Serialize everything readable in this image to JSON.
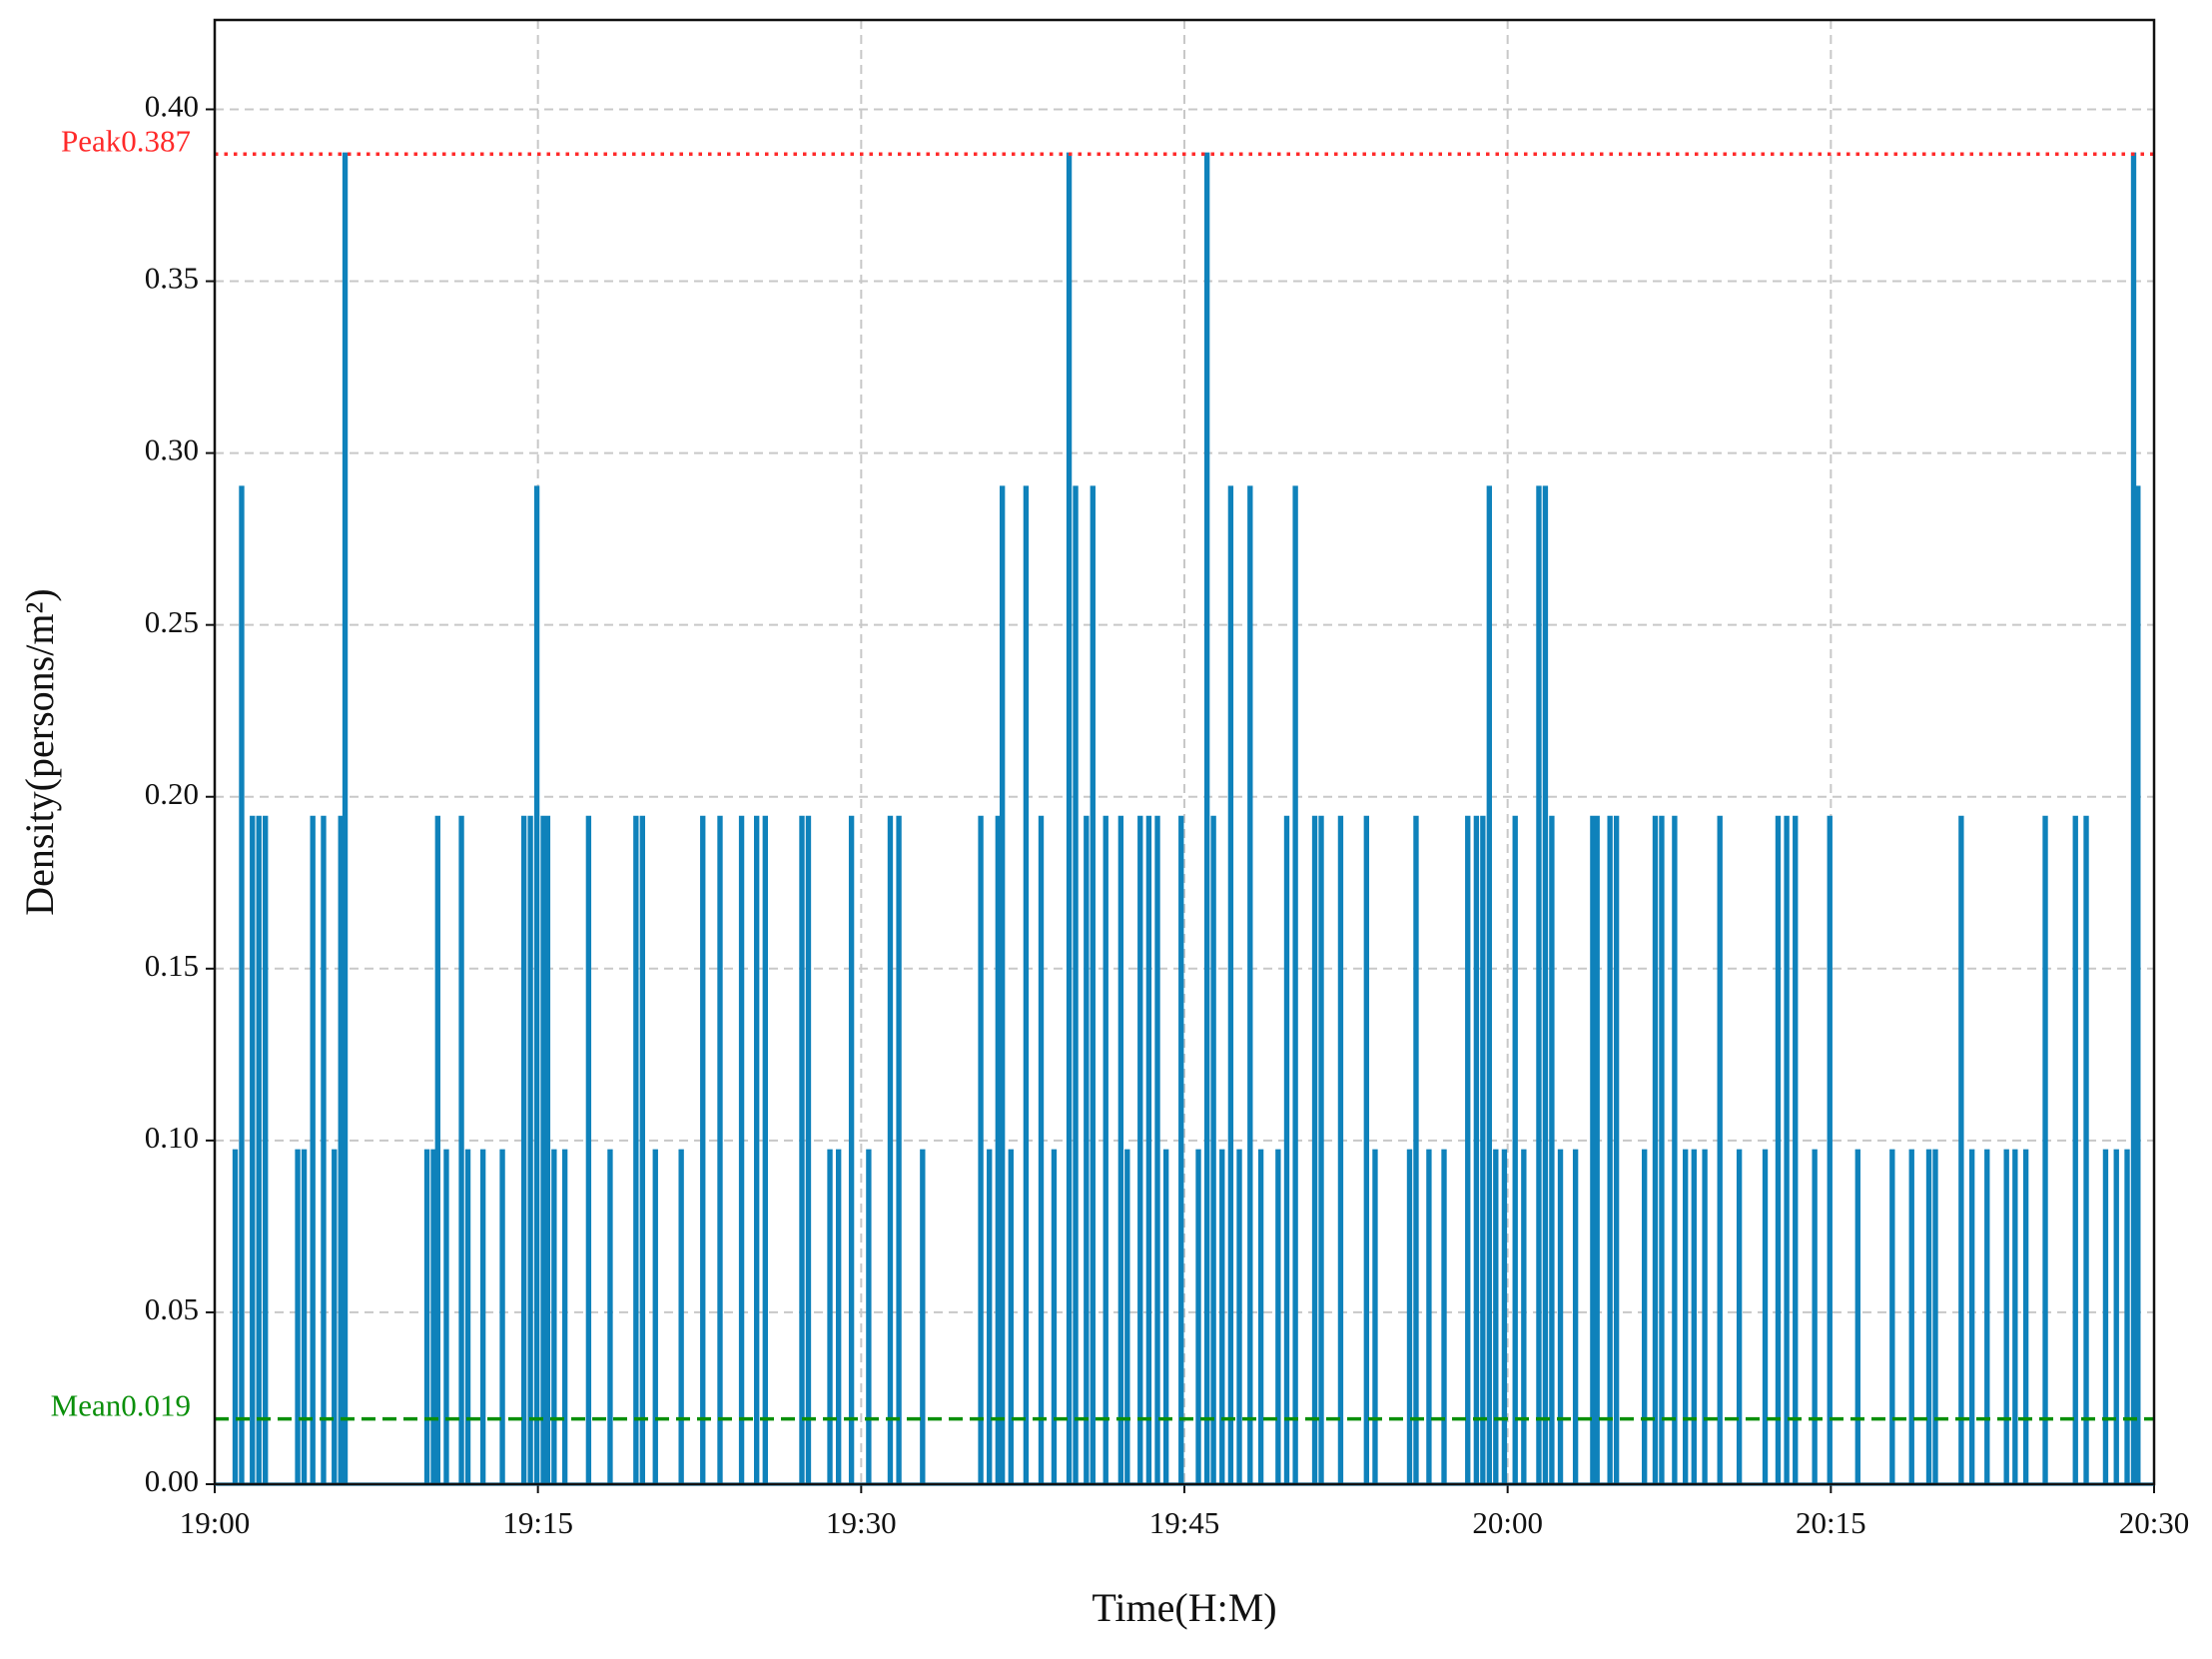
{
  "chart_data": {
    "type": "line",
    "x_label": "Time(H:M)",
    "y_label": "Density(persons/m²)",
    "drawstyle": "steps-post",
    "grid": true,
    "xlim": [
      0,
      90
    ],
    "xticks": [
      {
        "value": 0,
        "label": "19:00"
      },
      {
        "value": 15,
        "label": "19:15"
      },
      {
        "value": 30,
        "label": "19:30"
      },
      {
        "value": 45,
        "label": "19:45"
      },
      {
        "value": 60,
        "label": "20:00"
      },
      {
        "value": 75,
        "label": "20:15"
      },
      {
        "value": 90,
        "label": "20:30"
      }
    ],
    "ylim": [
      0,
      0.426
    ],
    "yticks": [
      {
        "value": 0,
        "label": "0.00"
      },
      {
        "value": 0.05,
        "label": "0.05"
      },
      {
        "value": 0.1,
        "label": "0.10"
      },
      {
        "value": 0.15,
        "label": "0.15"
      },
      {
        "value": 0.2,
        "label": "0.20"
      },
      {
        "value": 0.25,
        "label": "0.25"
      },
      {
        "value": 0.3,
        "label": "0.30"
      },
      {
        "value": 0.35,
        "label": "0.35"
      },
      {
        "value": 0.4,
        "label": "0.40"
      }
    ],
    "reference_lines": [
      {
        "label": "Peak0.387",
        "value": 0.387,
        "color": "#ff2a2a",
        "style": "dotted"
      },
      {
        "label": "Mean0.019",
        "value": 0.019,
        "color": "#0a8f0a",
        "style": "dashed"
      }
    ],
    "series": [
      {
        "color": "#0f82bb",
        "x": [
          0,
          0.9,
          1.0,
          1.2,
          1.3,
          1.7,
          1.8,
          2.0,
          2.1,
          2.3,
          2.4,
          3.8,
          3.9,
          4.1,
          4.2,
          4.5,
          4.6,
          5.0,
          5.1,
          5.5,
          5.6,
          5.8,
          5.9,
          6.0,
          6.1,
          9.8,
          9.9,
          10.1,
          10.2,
          10.3,
          10.4,
          10.7,
          10.8,
          11.4,
          11.5,
          11.7,
          11.8,
          12.4,
          12.5,
          13.3,
          13.4,
          14.3,
          14.4,
          14.6,
          14.7,
          14.9,
          15.0,
          15.2,
          15.3,
          15.4,
          15.5,
          15.7,
          15.8,
          16.2,
          16.3,
          17.3,
          17.4,
          18.3,
          18.4,
          19.5,
          19.6,
          19.8,
          19.9,
          20.4,
          20.5,
          21.6,
          21.7,
          22.6,
          22.7,
          23.4,
          23.5,
          24.4,
          24.5,
          25.1,
          25.2,
          25.5,
          25.6,
          27.2,
          27.3,
          27.5,
          27.6,
          28.5,
          28.6,
          28.9,
          29.0,
          29.5,
          29.6,
          30.3,
          30.4,
          31.3,
          31.4,
          31.7,
          31.8,
          32.8,
          32.9,
          35.5,
          35.6,
          35.9,
          36.0,
          36.3,
          36.4,
          36.5,
          36.6,
          36.9,
          37.0,
          37.6,
          37.7,
          38.3,
          38.4,
          38.9,
          39.0,
          39.6,
          39.7,
          39.9,
          40.0,
          40.4,
          40.5,
          40.7,
          40.8,
          41.3,
          41.4,
          42.0,
          42.1,
          42.3,
          42.4,
          42.9,
          43.0,
          43.3,
          43.4,
          43.7,
          43.8,
          44.1,
          44.2,
          44.8,
          44.9,
          45.6,
          45.7,
          46.0,
          46.1,
          46.3,
          46.4,
          46.7,
          46.8,
          47.1,
          47.2,
          47.5,
          47.6,
          48.0,
          48.1,
          48.5,
          48.6,
          49.3,
          49.4,
          49.7,
          49.8,
          50.1,
          50.2,
          51.0,
          51.1,
          51.3,
          51.4,
          52.2,
          52.3,
          53.4,
          53.5,
          53.8,
          53.9,
          55.4,
          55.5,
          55.7,
          55.8,
          56.3,
          56.4,
          57.0,
          57.1,
          58.1,
          58.2,
          58.5,
          58.6,
          58.8,
          58.9,
          59.1,
          59.2,
          59.4,
          59.5,
          59.8,
          59.9,
          60.3,
          60.4,
          60.7,
          60.8,
          61.4,
          61.5,
          61.7,
          61.8,
          62.0,
          62.1,
          62.4,
          62.5,
          63.1,
          63.2,
          63.9,
          64.0,
          64.1,
          64.2,
          64.7,
          64.8,
          65.0,
          65.1,
          66.3,
          66.4,
          66.8,
          66.9,
          67.1,
          67.2,
          67.7,
          67.8,
          68.2,
          68.3,
          68.6,
          68.7,
          69.1,
          69.2,
          69.8,
          69.9,
          70.7,
          70.8,
          71.9,
          72.0,
          72.5,
          72.6,
          72.9,
          73.0,
          73.3,
          73.4,
          74.2,
          74.3,
          74.9,
          75.0,
          76.2,
          76.3,
          77.8,
          77.9,
          78.7,
          78.8,
          79.5,
          79.6,
          79.8,
          79.9,
          81.0,
          81.1,
          81.5,
          81.6,
          82.2,
          82.3,
          83.1,
          83.2,
          83.5,
          83.6,
          84.0,
          84.1,
          84.9,
          85.0,
          86.3,
          86.4,
          86.8,
          86.9,
          87.7,
          87.8,
          88.2,
          88.3,
          88.7,
          88.8,
          89.0,
          89.1,
          89.2,
          89.3,
          90
        ],
        "values": [
          0,
          0.097,
          0,
          0.29,
          0,
          0.194,
          0,
          0.194,
          0,
          0.194,
          0,
          0.097,
          0,
          0.097,
          0,
          0.194,
          0,
          0.194,
          0,
          0.097,
          0,
          0.194,
          0,
          0.387,
          0,
          0.097,
          0,
          0.097,
          0,
          0.194,
          0,
          0.097,
          0,
          0.194,
          0,
          0.097,
          0,
          0.097,
          0,
          0.097,
          0,
          0.194,
          0,
          0.194,
          0,
          0.29,
          0,
          0.194,
          0,
          0.194,
          0,
          0.097,
          0,
          0.097,
          0,
          0.194,
          0,
          0.097,
          0,
          0.194,
          0,
          0.194,
          0,
          0.097,
          0,
          0.097,
          0,
          0.194,
          0,
          0.194,
          0,
          0.194,
          0,
          0.194,
          0,
          0.194,
          0,
          0.194,
          0,
          0.194,
          0,
          0.097,
          0,
          0.097,
          0,
          0.194,
          0,
          0.097,
          0,
          0.194,
          0,
          0.194,
          0,
          0.097,
          0,
          0.194,
          0,
          0.097,
          0,
          0.194,
          0,
          0.29,
          0,
          0.097,
          0,
          0.29,
          0,
          0.194,
          0,
          0.097,
          0,
          0.387,
          0,
          0.29,
          0,
          0.194,
          0,
          0.29,
          0,
          0.194,
          0,
          0.194,
          0,
          0.097,
          0,
          0.194,
          0,
          0.194,
          0,
          0.194,
          0,
          0.097,
          0,
          0.194,
          0,
          0.097,
          0,
          0.387,
          0,
          0.194,
          0,
          0.097,
          0,
          0.29,
          0,
          0.097,
          0,
          0.29,
          0,
          0.097,
          0,
          0.097,
          0,
          0.194,
          0,
          0.29,
          0,
          0.194,
          0,
          0.194,
          0,
          0.194,
          0,
          0.194,
          0,
          0.097,
          0,
          0.097,
          0,
          0.194,
          0,
          0.097,
          0,
          0.097,
          0,
          0.194,
          0,
          0.194,
          0,
          0.194,
          0,
          0.29,
          0,
          0.097,
          0,
          0.097,
          0,
          0.194,
          0,
          0.097,
          0,
          0.29,
          0,
          0.29,
          0,
          0.194,
          0,
          0.097,
          0,
          0.097,
          0,
          0.194,
          0,
          0.194,
          0,
          0.194,
          0,
          0.194,
          0,
          0.097,
          0,
          0.194,
          0,
          0.194,
          0,
          0.194,
          0,
          0.097,
          0,
          0.097,
          0,
          0.097,
          0,
          0.194,
          0,
          0.097,
          0,
          0.097,
          0,
          0.194,
          0,
          0.194,
          0,
          0.194,
          0,
          0.097,
          0,
          0.194,
          0,
          0.097,
          0,
          0.097,
          0,
          0.097,
          0,
          0.097,
          0,
          0.097,
          0,
          0.194,
          0,
          0.097,
          0,
          0.097,
          0,
          0.097,
          0,
          0.097,
          0,
          0.097,
          0,
          0.194,
          0,
          0.194,
          0,
          0.194,
          0,
          0.097,
          0,
          0.097,
          0,
          0.097,
          0,
          0.387,
          0,
          0.29,
          0,
          0
        ]
      }
    ]
  }
}
